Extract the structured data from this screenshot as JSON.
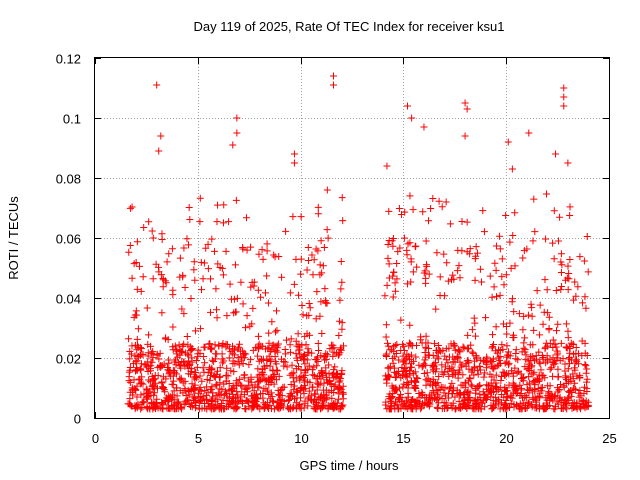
{
  "chart_data": {
    "type": "scatter",
    "title": "Day 119 of 2025, Rate Of TEC Index for receiver ksu1",
    "xlabel": "GPS time / hours",
    "ylabel": "ROTI / TECUs",
    "xlim": [
      0,
      25
    ],
    "ylim": [
      0,
      0.12
    ],
    "x_ticks": [
      0,
      5,
      10,
      15,
      20,
      25
    ],
    "x_tick_labels": [
      "0",
      "5",
      "10",
      "15",
      "20",
      "25"
    ],
    "y_ticks": [
      0,
      0.02,
      0.04,
      0.06,
      0.08,
      0.1,
      0.12
    ],
    "y_tick_labels": [
      "0",
      "0.02",
      "0.04",
      "0.06",
      "0.08",
      "0.1",
      "0.12"
    ],
    "grid": true,
    "marker": "+",
    "marker_color": "#ff0000",
    "series": [
      {
        "segments": [
          {
            "x_start": 1.6,
            "x_end": 12.1
          },
          {
            "x_start": 14.1,
            "x_end": 24.0
          }
        ],
        "typical_range": [
          0.003,
          0.05
        ],
        "notable_points": [
          {
            "x": 3.0,
            "y": 0.111
          },
          {
            "x": 3.2,
            "y": 0.094
          },
          {
            "x": 3.1,
            "y": 0.089
          },
          {
            "x": 6.9,
            "y": 0.1
          },
          {
            "x": 6.9,
            "y": 0.095
          },
          {
            "x": 6.7,
            "y": 0.091
          },
          {
            "x": 9.7,
            "y": 0.088
          },
          {
            "x": 9.7,
            "y": 0.085
          },
          {
            "x": 11.6,
            "y": 0.114
          },
          {
            "x": 11.6,
            "y": 0.111
          },
          {
            "x": 11.3,
            "y": 0.076
          },
          {
            "x": 14.2,
            "y": 0.084
          },
          {
            "x": 15.2,
            "y": 0.104
          },
          {
            "x": 15.4,
            "y": 0.1
          },
          {
            "x": 16.0,
            "y": 0.097
          },
          {
            "x": 18.0,
            "y": 0.105
          },
          {
            "x": 18.1,
            "y": 0.103
          },
          {
            "x": 18.0,
            "y": 0.094
          },
          {
            "x": 20.1,
            "y": 0.092
          },
          {
            "x": 21.1,
            "y": 0.095
          },
          {
            "x": 20.3,
            "y": 0.083
          },
          {
            "x": 22.8,
            "y": 0.11
          },
          {
            "x": 22.8,
            "y": 0.107
          },
          {
            "x": 22.8,
            "y": 0.104
          },
          {
            "x": 22.4,
            "y": 0.088
          },
          {
            "x": 23.0,
            "y": 0.085
          }
        ]
      }
    ]
  }
}
